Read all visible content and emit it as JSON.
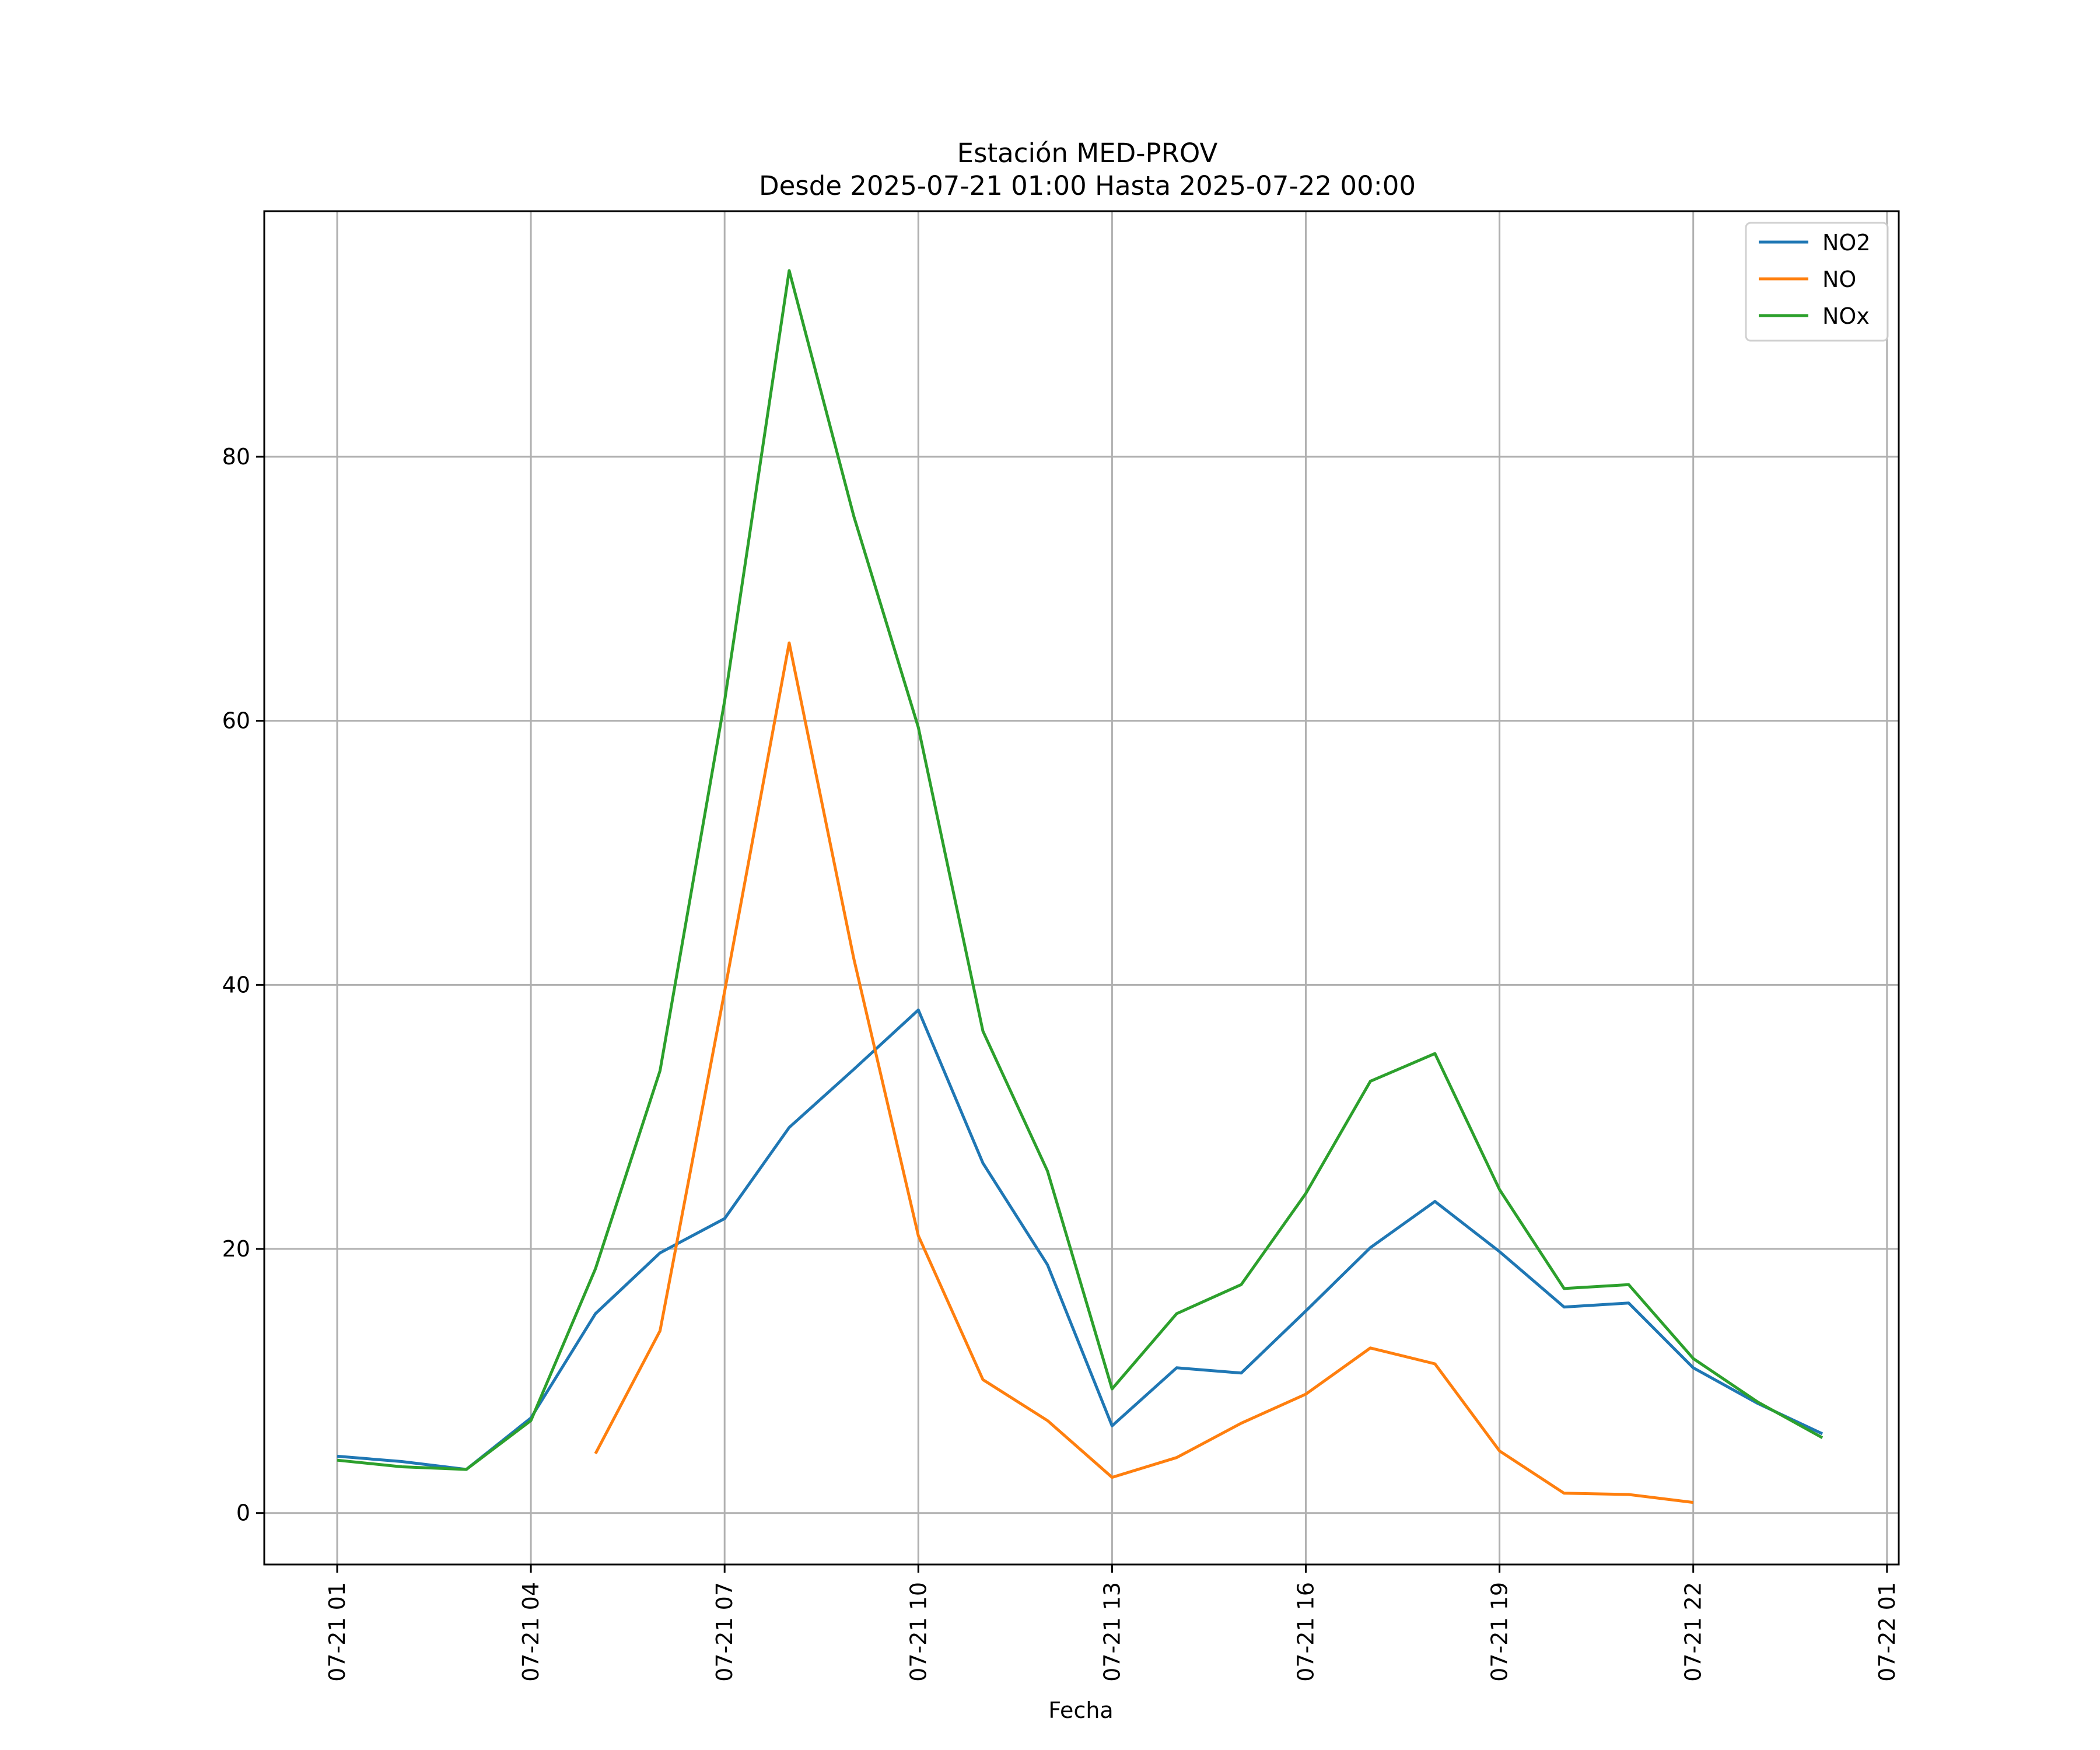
{
  "chart_data": {
    "type": "line",
    "title": "Estación MED-PROV",
    "subtitle": "Desde 2025-07-21 01:00 Hasta 2025-07-22 00:00",
    "xlabel": "Fecha",
    "ylabel": "",
    "x": [
      "2025-07-21 01:00",
      "2025-07-21 02:00",
      "2025-07-21 03:00",
      "2025-07-21 04:00",
      "2025-07-21 05:00",
      "2025-07-21 06:00",
      "2025-07-21 07:00",
      "2025-07-21 08:00",
      "2025-07-21 09:00",
      "2025-07-21 10:00",
      "2025-07-21 11:00",
      "2025-07-21 12:00",
      "2025-07-21 13:00",
      "2025-07-21 14:00",
      "2025-07-21 15:00",
      "2025-07-21 16:00",
      "2025-07-21 17:00",
      "2025-07-21 18:00",
      "2025-07-21 19:00",
      "2025-07-21 20:00",
      "2025-07-21 21:00",
      "2025-07-21 22:00",
      "2025-07-21 23:00",
      "2025-07-22 00:00"
    ],
    "x_ticks": [
      "07-21 01",
      "07-21 04",
      "07-21 07",
      "07-21 10",
      "07-21 13",
      "07-21 16",
      "07-21 19",
      "07-21 22",
      "07-22 01"
    ],
    "y_ticks": [
      0,
      20,
      40,
      60,
      80
    ],
    "ylim": [
      -3.9,
      98.6
    ],
    "grid": true,
    "legend_position": "top-right",
    "series": [
      {
        "name": "NO2",
        "color": "#1f77b4",
        "values": [
          4.3,
          3.9,
          3.3,
          7.2,
          15.1,
          19.7,
          22.3,
          29.2,
          33.6,
          38.1,
          26.5,
          18.8,
          6.6,
          11.0,
          10.6,
          15.3,
          20.1,
          23.6,
          19.8,
          15.6,
          15.9,
          11.0,
          8.3,
          6.0
        ]
      },
      {
        "name": "NO",
        "color": "#ff7f0e",
        "values": [
          null,
          null,
          null,
          null,
          4.5,
          13.8,
          39.5,
          65.9,
          42.0,
          21.0,
          10.1,
          7.0,
          2.7,
          4.2,
          6.8,
          9.0,
          12.5,
          11.3,
          4.7,
          1.5,
          1.4,
          0.8,
          null,
          null
        ]
      },
      {
        "name": "NOx",
        "color": "#2ca02c",
        "values": [
          4.0,
          3.5,
          3.3,
          7.0,
          18.5,
          33.5,
          61.5,
          94.1,
          75.5,
          59.5,
          36.5,
          25.9,
          9.4,
          15.1,
          17.3,
          24.2,
          32.7,
          34.8,
          24.5,
          17.0,
          17.3,
          11.7,
          8.4,
          5.7
        ]
      }
    ]
  }
}
